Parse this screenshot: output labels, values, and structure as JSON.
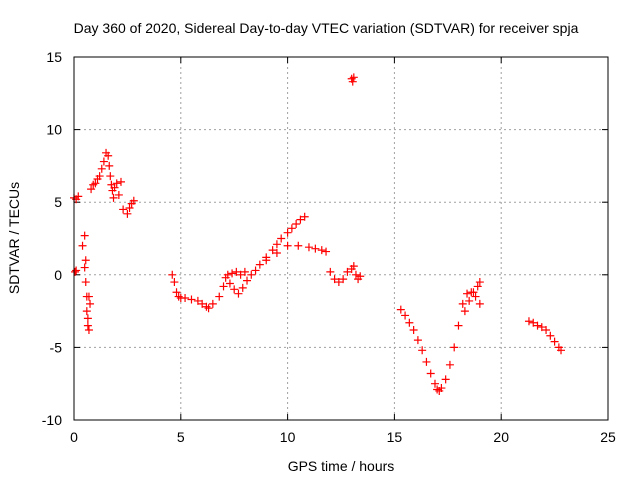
{
  "chart_data": {
    "type": "scatter",
    "title": "Day 360 of 2020, Sidereal Day-to-day VTEC variation (SDTVAR) for receiver spja",
    "xlabel": "GPS time / hours",
    "ylabel": "SDTVAR / TECUs",
    "xlim": [
      0,
      25
    ],
    "ylim": [
      -10,
      15
    ],
    "xticks": [
      0,
      5,
      10,
      15,
      20,
      25
    ],
    "yticks": [
      -10,
      -5,
      0,
      5,
      10,
      15
    ],
    "xtick_labels": [
      "0",
      "5",
      "10",
      "15",
      "20",
      "25"
    ],
    "ytick_labels": [
      "-10",
      "-5",
      "0",
      "5",
      "10",
      "15"
    ],
    "grid": true,
    "marker": "+",
    "color": "#ff0000",
    "series": [
      {
        "name": "SDTVAR",
        "x": [
          0.0,
          0.1,
          0.2,
          0.05,
          0.1,
          0.4,
          0.5,
          0.55,
          0.6,
          0.65,
          0.7,
          0.75,
          0.5,
          0.55,
          0.6,
          0.65,
          0.7,
          0.8,
          0.9,
          1.0,
          1.1,
          1.2,
          1.3,
          1.4,
          1.5,
          1.6,
          1.65,
          1.7,
          1.75,
          1.8,
          1.85,
          1.9,
          2.0,
          2.1,
          2.2,
          2.3,
          2.5,
          2.6,
          2.7,
          2.8,
          4.6,
          4.7,
          4.8,
          4.9,
          5.0,
          5.2,
          5.5,
          5.8,
          6.0,
          6.2,
          6.3,
          6.5,
          6.8,
          7.0,
          7.2,
          7.4,
          7.6,
          7.8,
          8.0,
          7.1,
          7.3,
          7.5,
          7.7,
          7.9,
          8.1,
          8.3,
          8.5,
          8.7,
          9.0,
          9.3,
          9.5,
          9.7,
          10.0,
          10.2,
          10.4,
          10.6,
          10.8,
          9.0,
          9.5,
          10.0,
          10.5,
          11.0,
          11.3,
          11.6,
          11.8,
          12.0,
          12.2,
          12.4,
          12.6,
          12.8,
          13.0,
          13.1,
          13.2,
          13.3,
          13.4,
          13.0,
          13.05,
          13.1,
          15.3,
          15.5,
          15.7,
          15.9,
          16.1,
          16.3,
          16.5,
          16.7,
          16.9,
          17.0,
          17.1,
          17.2,
          17.4,
          17.6,
          17.8,
          18.0,
          18.2,
          18.4,
          18.6,
          18.8,
          19.0,
          18.3,
          18.5,
          18.7,
          18.9,
          19.0,
          21.3,
          21.5,
          21.7,
          21.9,
          22.1,
          22.3,
          22.5,
          22.7,
          22.8
        ],
        "y": [
          5.3,
          5.2,
          5.4,
          0.2,
          0.3,
          2.0,
          2.7,
          1.0,
          -1.5,
          -3.0,
          -3.8,
          -2.0,
          0.5,
          -0.5,
          -2.5,
          -3.5,
          -1.5,
          5.9,
          6.2,
          6.3,
          6.6,
          6.8,
          7.3,
          7.8,
          8.4,
          8.2,
          7.5,
          6.8,
          6.2,
          5.8,
          5.3,
          6.0,
          6.3,
          5.5,
          6.4,
          4.5,
          4.2,
          4.6,
          4.9,
          5.1,
          0.0,
          -0.5,
          -1.2,
          -1.5,
          -1.6,
          -1.6,
          -1.7,
          -1.8,
          -2.0,
          -2.2,
          -2.3,
          -2.0,
          -1.5,
          -0.8,
          0.0,
          0.1,
          0.2,
          0.0,
          0.2,
          -0.2,
          -0.6,
          -1.0,
          -1.3,
          -0.9,
          -0.4,
          0.0,
          0.3,
          0.7,
          1.2,
          1.7,
          2.1,
          2.5,
          2.9,
          3.2,
          3.5,
          3.8,
          4.0,
          1.0,
          1.5,
          2.0,
          2.0,
          1.9,
          1.8,
          1.7,
          1.6,
          0.2,
          -0.3,
          -0.5,
          -0.3,
          0.2,
          0.4,
          0.6,
          0.0,
          -0.3,
          -0.1,
          13.5,
          13.3,
          13.6,
          -2.4,
          -2.8,
          -3.3,
          -3.8,
          -4.5,
          -5.2,
          -6.0,
          -6.8,
          -7.5,
          -7.9,
          -8.0,
          -7.8,
          -7.2,
          -6.2,
          -5.0,
          -3.5,
          -2.0,
          -1.3,
          -1.2,
          -1.5,
          -2.0,
          -2.5,
          -1.8,
          -1.2,
          -0.8,
          -0.5,
          -3.2,
          -3.3,
          -3.5,
          -3.6,
          -3.8,
          -4.2,
          -4.6,
          -5.0,
          -5.2
        ]
      }
    ]
  }
}
